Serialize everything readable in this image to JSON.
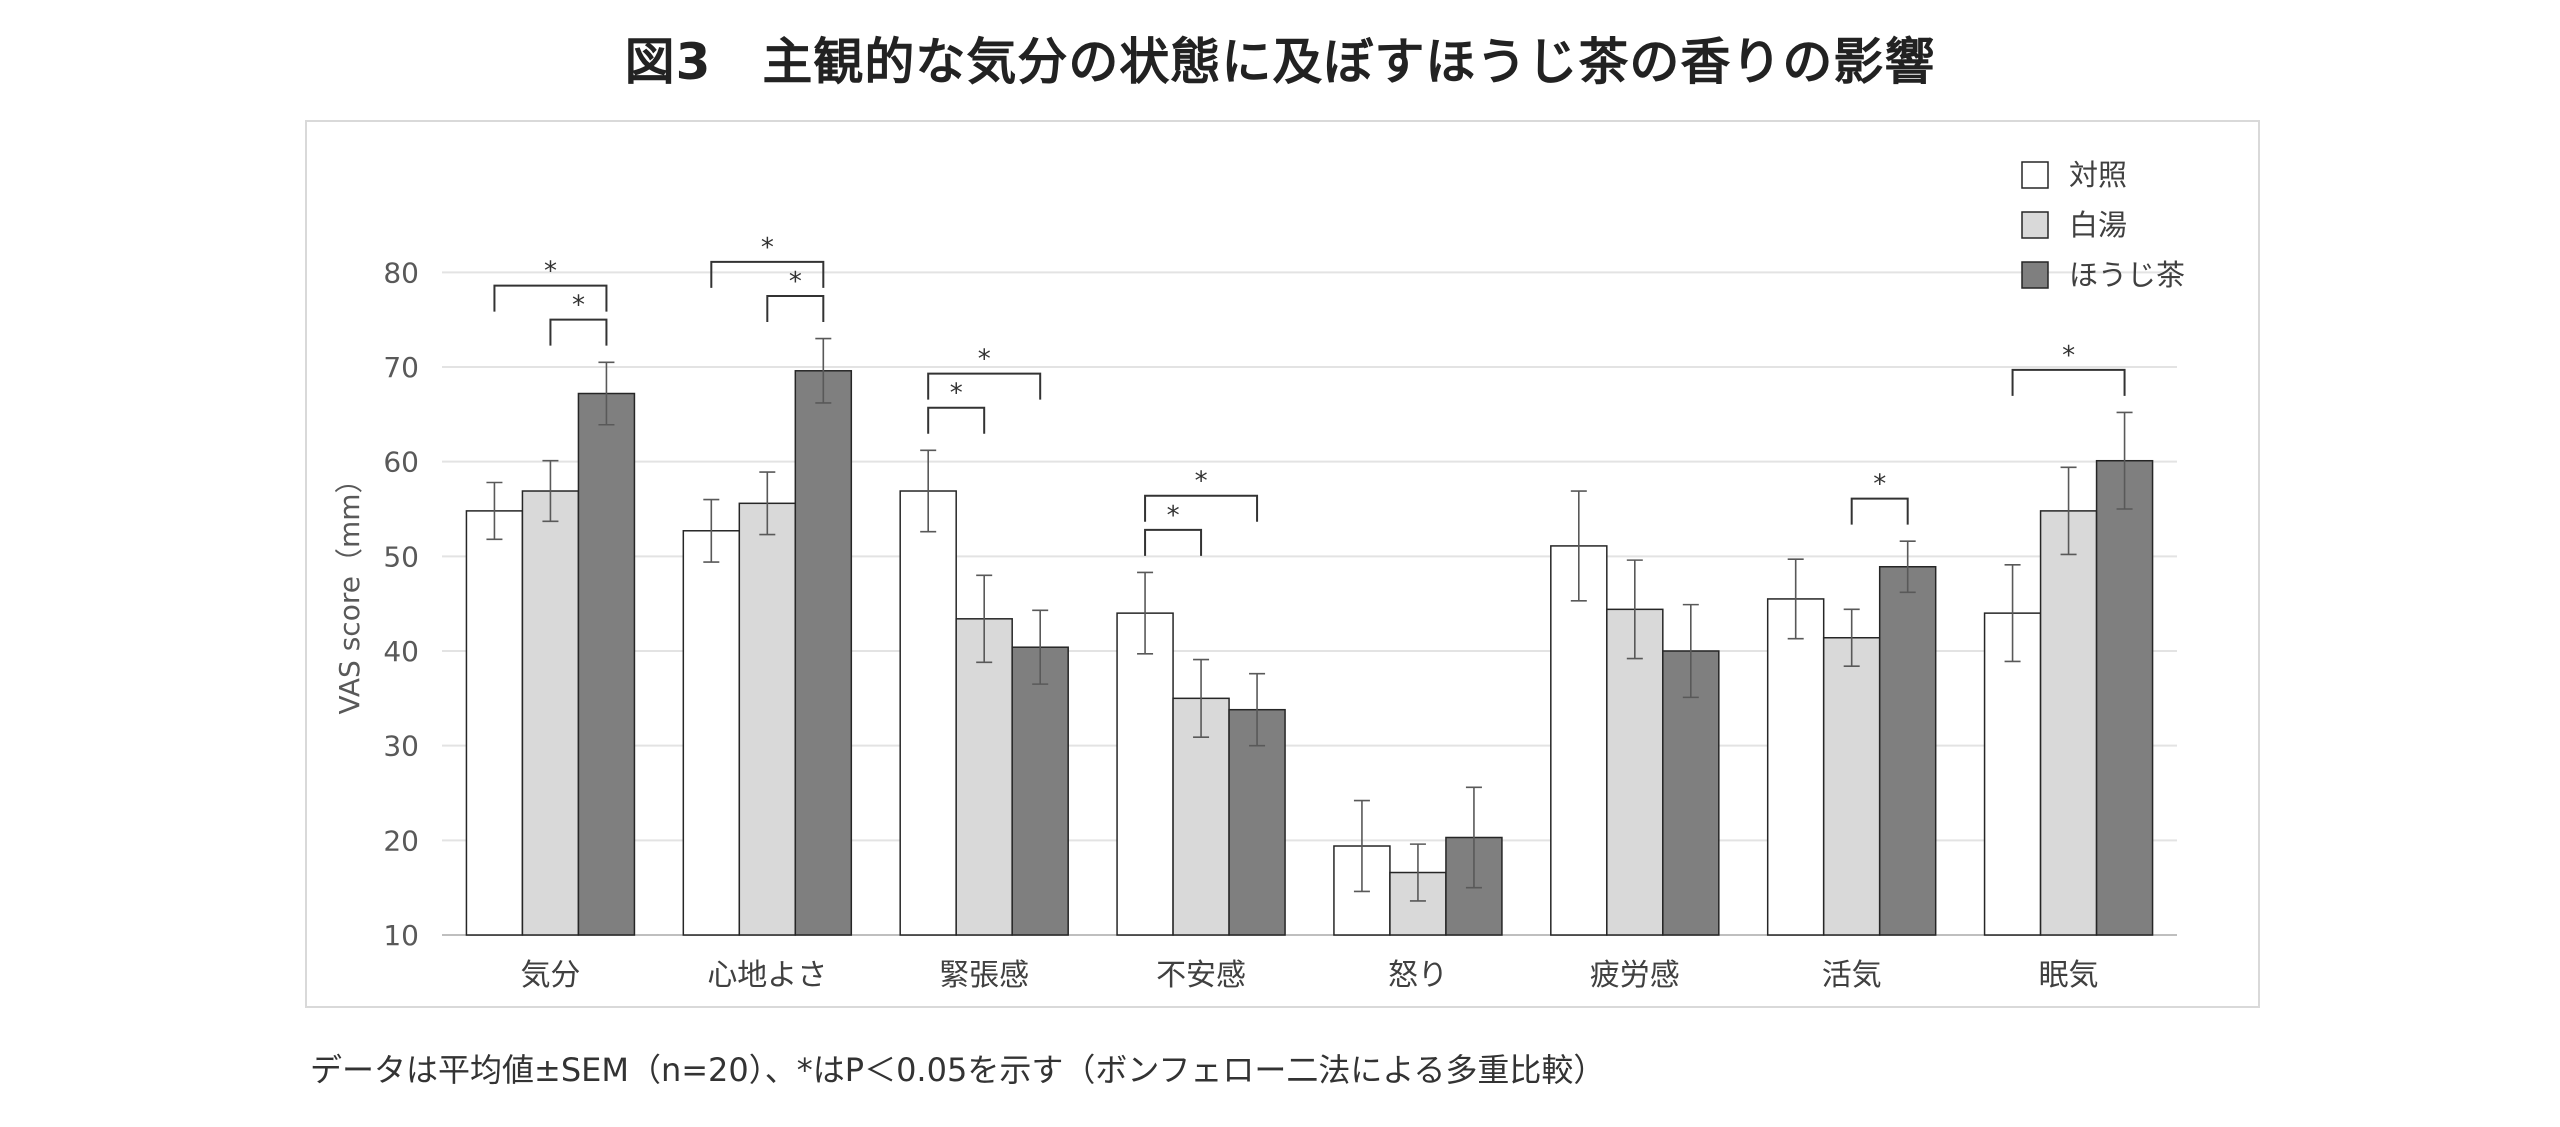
{
  "title": "図3　主観的な気分の状態に及ぼすほうじ茶の香りの影響",
  "footnote": "データは平均値±SEM（n=20）、*はP＜0.05を示す（ボンフェロー二法による多重比較）",
  "chart_data": {
    "type": "bar",
    "ylabel": "VAS score（mm）",
    "ylim": [
      10,
      80
    ],
    "yticks": [
      10,
      20,
      30,
      40,
      50,
      60,
      70,
      80
    ],
    "grid": true,
    "legend_position": "top-right",
    "categories": [
      "気分",
      "心地よさ",
      "緊張感",
      "不安感",
      "怒り",
      "疲労感",
      "活気",
      "眠気"
    ],
    "series": [
      {
        "name": "対照",
        "color": "#ffffff",
        "values": [
          54.8,
          52.7,
          56.9,
          44.0,
          19.4,
          51.1,
          45.5,
          44.0
        ],
        "errors": [
          3.0,
          3.3,
          4.3,
          4.3,
          4.8,
          5.8,
          4.2,
          5.1
        ]
      },
      {
        "name": "白湯",
        "color": "#d9d9d9",
        "values": [
          56.9,
          55.6,
          43.4,
          35.0,
          16.6,
          44.4,
          41.4,
          54.8
        ],
        "errors": [
          3.2,
          3.3,
          4.6,
          4.1,
          3.0,
          5.2,
          3.0,
          4.6
        ]
      },
      {
        "name": "ほうじ茶",
        "color": "#7f7f7f",
        "values": [
          67.2,
          69.6,
          40.4,
          33.8,
          20.3,
          40.0,
          48.9,
          60.1
        ],
        "errors": [
          3.3,
          3.4,
          3.9,
          3.8,
          5.3,
          4.9,
          2.7,
          5.1
        ]
      }
    ],
    "significance": [
      {
        "category": 0,
        "from": 0,
        "to": 2,
        "label": "*"
      },
      {
        "category": 0,
        "from": 1,
        "to": 2,
        "label": "*"
      },
      {
        "category": 1,
        "from": 0,
        "to": 2,
        "label": "*"
      },
      {
        "category": 1,
        "from": 1,
        "to": 2,
        "label": "*"
      },
      {
        "category": 2,
        "from": 0,
        "to": 2,
        "label": "*"
      },
      {
        "category": 2,
        "from": 0,
        "to": 1,
        "label": "*"
      },
      {
        "category": 3,
        "from": 0,
        "to": 2,
        "label": "*"
      },
      {
        "category": 3,
        "from": 0,
        "to": 1,
        "label": "*"
      },
      {
        "category": 6,
        "from": 1,
        "to": 2,
        "label": "*"
      },
      {
        "category": 7,
        "from": 0,
        "to": 2,
        "label": "*"
      }
    ]
  }
}
